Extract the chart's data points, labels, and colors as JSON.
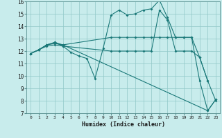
{
  "xlabel": "Humidex (Indice chaleur)",
  "xlim": [
    -0.5,
    23.5
  ],
  "ylim": [
    7,
    16
  ],
  "yticks": [
    7,
    8,
    9,
    10,
    11,
    12,
    13,
    14,
    15,
    16
  ],
  "xticks": [
    0,
    1,
    2,
    3,
    4,
    5,
    6,
    7,
    8,
    9,
    10,
    11,
    12,
    13,
    14,
    15,
    16,
    17,
    18,
    19,
    20,
    21,
    22,
    23
  ],
  "bg_color": "#c8ecec",
  "grid_color": "#90c8c8",
  "line_color": "#1a7878",
  "lines": [
    {
      "x": [
        0,
        1,
        2,
        3,
        4,
        10,
        11,
        12,
        13,
        14,
        15,
        16,
        17,
        18,
        19,
        20,
        21,
        22
      ],
      "y": [
        11.8,
        12.1,
        12.5,
        12.6,
        12.5,
        13.1,
        13.1,
        13.1,
        13.1,
        13.1,
        13.1,
        13.1,
        13.1,
        13.1,
        13.1,
        13.1,
        11.5,
        9.6
      ]
    },
    {
      "x": [
        0,
        1,
        2,
        3,
        4,
        5,
        6,
        7,
        8,
        9,
        10,
        11,
        12,
        13,
        14,
        15,
        16,
        17,
        18,
        19,
        20,
        21,
        22,
        23
      ],
      "y": [
        11.8,
        12.1,
        12.5,
        12.7,
        12.4,
        11.9,
        11.6,
        11.4,
        9.8,
        12.2,
        14.9,
        15.3,
        14.9,
        15.0,
        15.3,
        15.4,
        16.1,
        14.7,
        13.1,
        13.1,
        13.1,
        9.6,
        7.2,
        8.1
      ]
    },
    {
      "x": [
        0,
        1,
        2,
        3,
        4,
        22,
        23
      ],
      "y": [
        11.8,
        12.1,
        12.5,
        12.7,
        12.5,
        7.2,
        8.1
      ]
    },
    {
      "x": [
        0,
        1,
        2,
        3,
        4,
        10,
        11,
        12,
        13,
        14,
        15,
        16,
        17,
        18,
        19,
        20,
        21,
        22,
        23
      ],
      "y": [
        11.8,
        12.1,
        12.4,
        12.5,
        12.4,
        12.0,
        12.0,
        12.0,
        12.0,
        12.0,
        12.0,
        15.3,
        14.5,
        12.0,
        12.0,
        12.0,
        11.5,
        9.6,
        8.0
      ]
    }
  ]
}
